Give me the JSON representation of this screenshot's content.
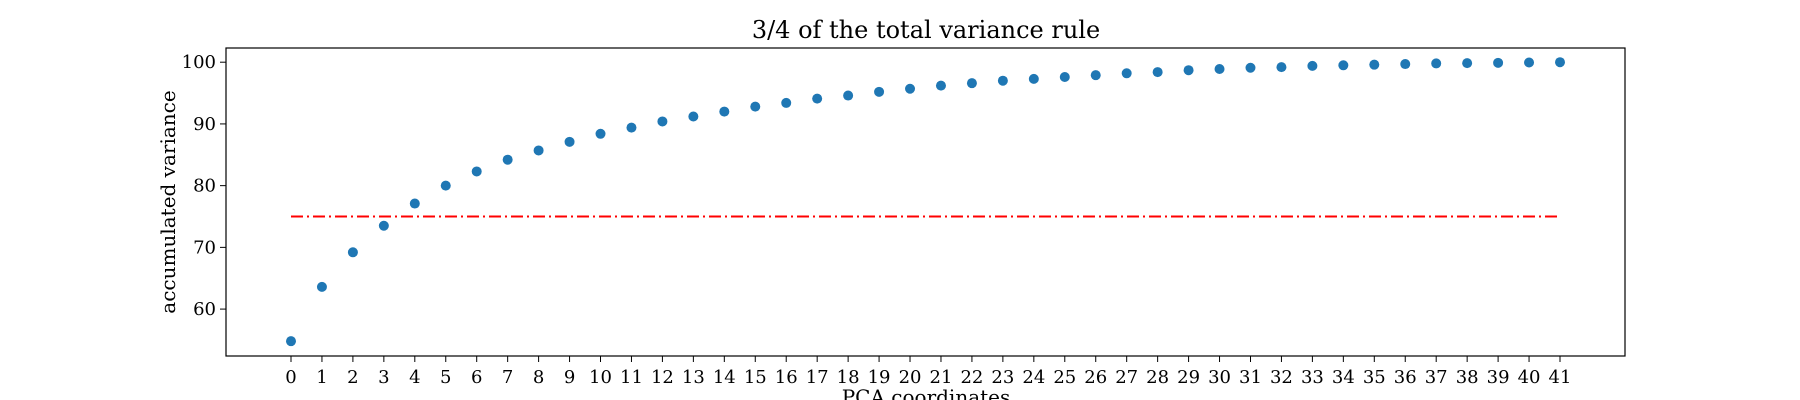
{
  "chart_data": {
    "type": "scatter",
    "title": "3/4 of the total variance rule",
    "xlabel": "PCA coordinates",
    "ylabel": "accumulated variance",
    "x": [
      0,
      1,
      2,
      3,
      4,
      5,
      6,
      7,
      8,
      9,
      10,
      11,
      12,
      13,
      14,
      15,
      16,
      17,
      18,
      19,
      20,
      21,
      22,
      23,
      24,
      25,
      26,
      27,
      28,
      29,
      30,
      31,
      32,
      33,
      34,
      35,
      36,
      37,
      38,
      39,
      40,
      41
    ],
    "y": [
      54.8,
      63.6,
      69.2,
      73.5,
      77.1,
      80.0,
      82.3,
      84.2,
      85.7,
      87.1,
      88.4,
      89.4,
      90.4,
      91.2,
      92.0,
      92.8,
      93.4,
      94.1,
      94.6,
      95.2,
      95.7,
      96.2,
      96.6,
      97.0,
      97.3,
      97.6,
      97.9,
      98.2,
      98.4,
      98.7,
      98.9,
      99.1,
      99.2,
      99.4,
      99.5,
      99.6,
      99.7,
      99.8,
      99.85,
      99.9,
      99.95,
      100.0
    ],
    "xticks": [
      0,
      1,
      2,
      3,
      4,
      5,
      6,
      7,
      8,
      9,
      10,
      11,
      12,
      13,
      14,
      15,
      16,
      17,
      18,
      19,
      20,
      21,
      22,
      23,
      24,
      25,
      26,
      27,
      28,
      29,
      30,
      31,
      32,
      33,
      34,
      35,
      36,
      37,
      38,
      39,
      40,
      41
    ],
    "yticks": [
      60,
      70,
      80,
      90,
      100
    ],
    "xlim": [
      -2.1,
      43.1
    ],
    "ylim": [
      52.4,
      102.3
    ],
    "threshold": {
      "value": 75,
      "x_range": [
        0,
        41
      ],
      "color": "#ff0000",
      "style": "dash-dot"
    },
    "marker_color": "#1f77b4",
    "grid": false,
    "legend": "none"
  }
}
